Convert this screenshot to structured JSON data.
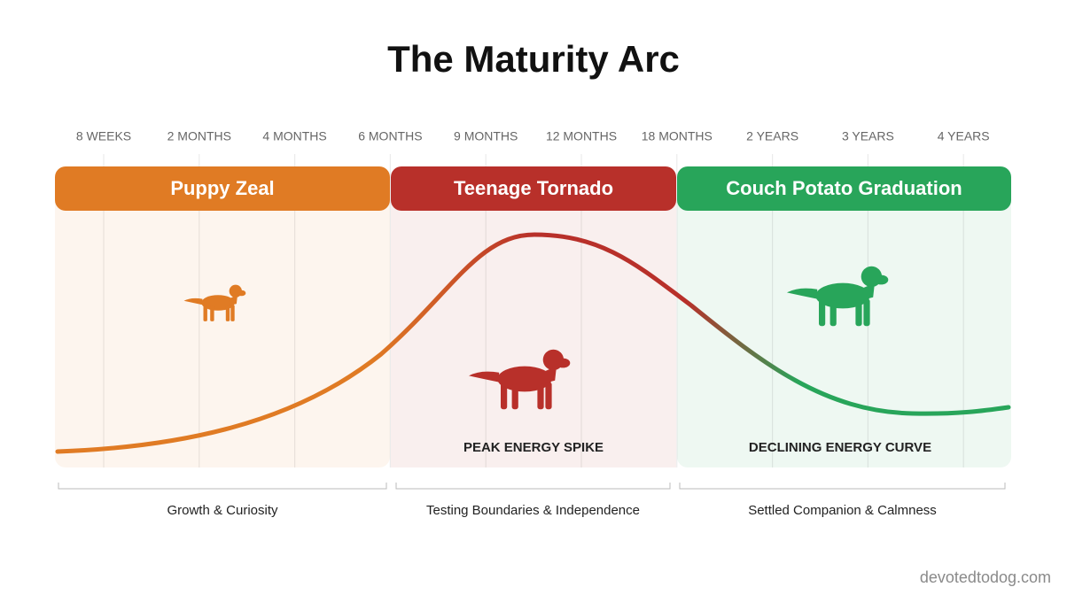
{
  "title": "The Maturity Arc",
  "timeline": [
    "8 WEEKS",
    "2 MONTHS",
    "4 MONTHS",
    "6 MONTHS",
    "9 MONTHS",
    "12 MONTHS",
    "18 MONTHS",
    "2 YEARS",
    "3 YEARS",
    "4 YEARS"
  ],
  "phases": [
    {
      "name": "Puppy Zeal",
      "color": "#e07b24",
      "caption": "Growth & Curiosity"
    },
    {
      "name": "Teenage Tornado",
      "color": "#b8302a",
      "caption": "Testing Boundaries & Independence",
      "annotation": "PEAK ENERGY SPIKE"
    },
    {
      "name": "Couch Potato Graduation",
      "color": "#28a55a",
      "caption": "Settled Companion & Calmness",
      "annotation": "DECLINING ENERGY CURVE"
    }
  ],
  "watermark": "devotedtodog.com"
}
